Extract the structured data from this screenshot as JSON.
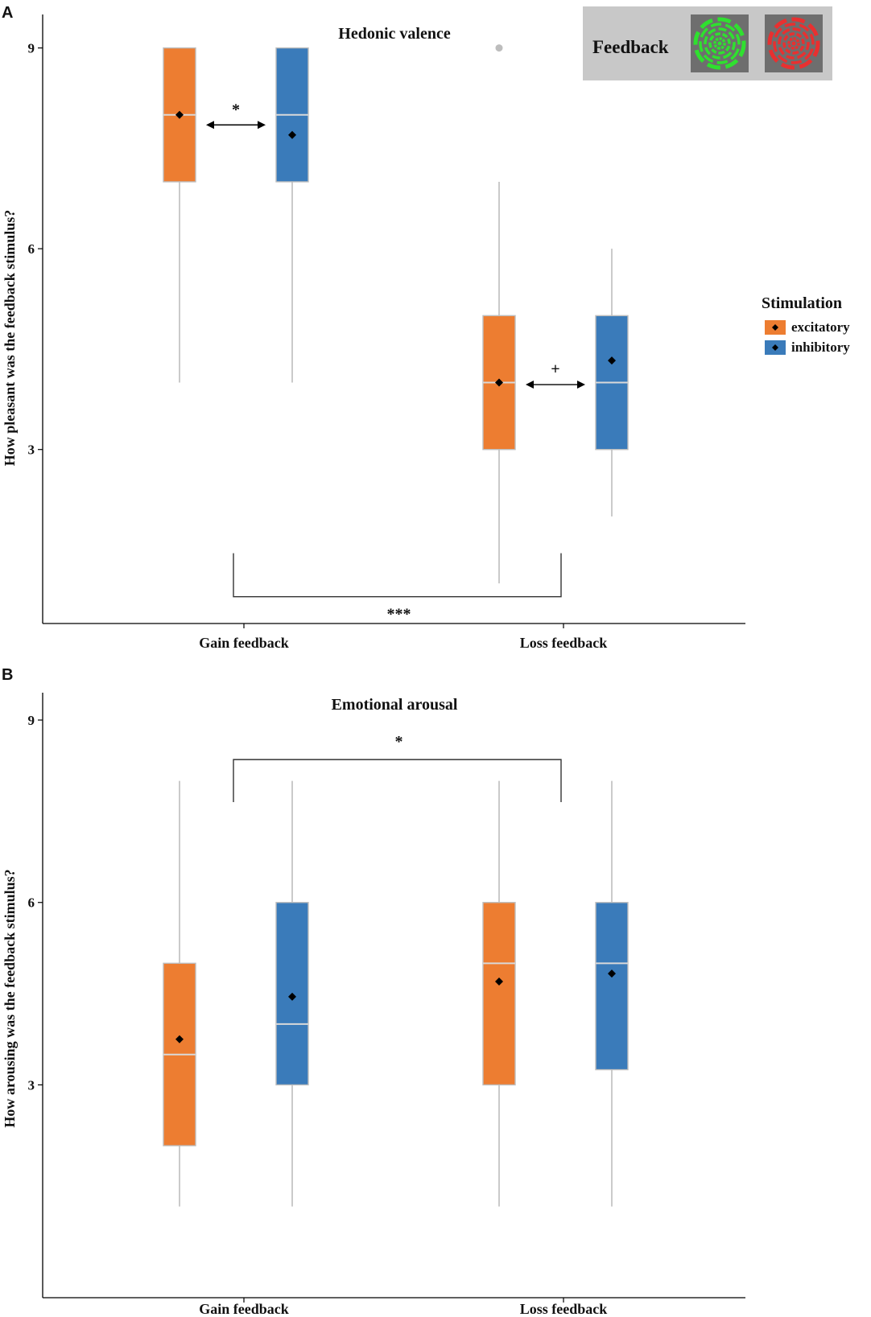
{
  "colors": {
    "excitatory": "#ED7D31",
    "inhibitory": "#3A7BBA",
    "whisker": "#BDBDBD",
    "mean_marker": "#000000",
    "inset_bg": "#C8C8C8",
    "inset_tile": "#6E6E6E",
    "gain_stim": "#2FE02F",
    "loss_stim": "#E83030"
  },
  "legend": {
    "title": "Stimulation",
    "entries": [
      {
        "label": "excitatory",
        "color_key": "excitatory"
      },
      {
        "label": "inhibitory",
        "color_key": "inhibitory"
      }
    ]
  },
  "inset": {
    "label": "Feedback",
    "stimuli": [
      {
        "name": "gain-stimulus-icon",
        "color_key": "gain_stim"
      },
      {
        "name": "loss-stimulus-icon",
        "color_key": "loss_stim"
      }
    ]
  },
  "chart_data": [
    {
      "panel": "A",
      "type": "boxplot",
      "title": "Hedonic valence",
      "ylabel": "How pleasant was the feedback stimulus?",
      "xlabel": "",
      "categories": [
        "Gain feedback",
        "Loss feedback"
      ],
      "yticks": [
        3,
        6,
        9
      ],
      "ylim": [
        0.4,
        9.5
      ],
      "series": [
        {
          "name": "excitatory",
          "boxes": [
            {
              "whisker_low": 4,
              "q1": 7,
              "median": 8,
              "q3": 9,
              "whisker_high": 9,
              "mean": 8.0,
              "outliers": []
            },
            {
              "whisker_low": 1,
              "q1": 3,
              "median": 4,
              "q3": 5,
              "whisker_high": 7,
              "mean": 4.0,
              "outliers": [
                9
              ]
            }
          ]
        },
        {
          "name": "inhibitory",
          "boxes": [
            {
              "whisker_low": 4,
              "q1": 7,
              "median": 8,
              "q3": 9,
              "whisker_high": 9,
              "mean": 7.7,
              "outliers": []
            },
            {
              "whisker_low": 2,
              "q1": 3,
              "median": 4,
              "q3": 5,
              "whisker_high": 6,
              "mean": 4.33,
              "outliers": []
            }
          ]
        }
      ],
      "annotations": [
        {
          "kind": "arrow",
          "category": "Gain feedback",
          "y": 7.85,
          "text": "*"
        },
        {
          "kind": "arrow",
          "category": "Loss feedback",
          "y": 3.97,
          "text": "+"
        },
        {
          "kind": "bracket",
          "between": [
            "Gain feedback",
            "Loss feedback"
          ],
          "y": 0.8,
          "leg_to": 1.45,
          "orientation": "down",
          "text": "***"
        }
      ]
    },
    {
      "panel": "B",
      "type": "boxplot",
      "title": "Emotional arousal",
      "ylabel": "How arousing was the feedback stimulus?",
      "xlabel": "",
      "categories": [
        "Gain feedback",
        "Loss feedback"
      ],
      "yticks": [
        3,
        6,
        9
      ],
      "ylim": [
        -0.5,
        9.45
      ],
      "series": [
        {
          "name": "excitatory",
          "boxes": [
            {
              "whisker_low": 1,
              "q1": 2,
              "median": 3.5,
              "q3": 5,
              "whisker_high": 8,
              "mean": 3.75,
              "outliers": []
            },
            {
              "whisker_low": 1,
              "q1": 3,
              "median": 5,
              "q3": 6,
              "whisker_high": 8,
              "mean": 4.7,
              "outliers": []
            }
          ]
        },
        {
          "name": "inhibitory",
          "boxes": [
            {
              "whisker_low": 1,
              "q1": 3,
              "median": 4,
              "q3": 6,
              "whisker_high": 8,
              "mean": 4.45,
              "outliers": []
            },
            {
              "whisker_low": 1,
              "q1": 3.25,
              "median": 5,
              "q3": 6,
              "whisker_high": 8,
              "mean": 4.83,
              "outliers": []
            }
          ]
        }
      ],
      "annotations": [
        {
          "kind": "bracket",
          "between": [
            "Gain feedback",
            "Loss feedback"
          ],
          "y": 8.35,
          "leg_to": 7.65,
          "orientation": "up",
          "text": "*"
        }
      ]
    }
  ]
}
